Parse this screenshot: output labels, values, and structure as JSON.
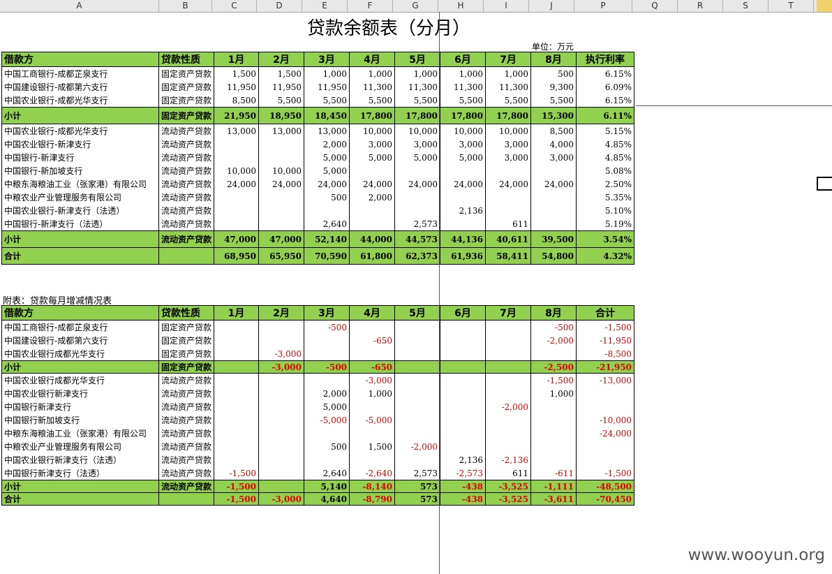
{
  "columns": [
    "A",
    "B",
    "C",
    "D",
    "E",
    "F",
    "G",
    "H",
    "I",
    "J",
    "P",
    "Q",
    "R",
    "S",
    "T"
  ],
  "title": "贷款余额表（分月）",
  "unit": "单位：万元",
  "table1": {
    "headers": [
      "借款方",
      "贷款性质",
      "1月",
      "2月",
      "3月",
      "4月",
      "5月",
      "6月",
      "7月",
      "8月",
      "执行利率"
    ],
    "group1": [
      [
        "中国工商银行-成都芷泉支行",
        "固定资产贷款",
        "1,500",
        "1,500",
        "1,000",
        "1,000",
        "1,000",
        "1,000",
        "1,000",
        "500",
        "6.15%"
      ],
      [
        "中国建设银行-成都第六支行",
        "固定资产贷款",
        "11,950",
        "11,950",
        "11,950",
        "11,300",
        "11,300",
        "11,300",
        "11,300",
        "9,300",
        "6.09%"
      ],
      [
        "中国农业银行-成都光华支行",
        "固定资产贷款",
        "8,500",
        "5,500",
        "5,500",
        "5,500",
        "5,500",
        "5,500",
        "5,500",
        "5,500",
        "6.15%"
      ]
    ],
    "subtotal1": [
      "小计",
      "固定资产贷款",
      "21,950",
      "18,950",
      "18,450",
      "17,800",
      "17,800",
      "17,800",
      "17,800",
      "15,300",
      "6.11%"
    ],
    "group2": [
      [
        "中国农业银行-成都光华支行",
        "流动资产贷款",
        "13,000",
        "13,000",
        "13,000",
        "10,000",
        "10,000",
        "10,000",
        "10,000",
        "8,500",
        "5.15%"
      ],
      [
        "中国农业银行-新津支行",
        "流动资产贷款",
        "",
        "",
        "2,000",
        "3,000",
        "3,000",
        "3,000",
        "3,000",
        "4,000",
        "4.85%"
      ],
      [
        "中国银行-新津支行",
        "流动资产贷款",
        "",
        "",
        "5,000",
        "5,000",
        "5,000",
        "5,000",
        "3,000",
        "3,000",
        "4.85%"
      ],
      [
        "中国银行-新加坡支行",
        "流动资产贷款",
        "10,000",
        "10,000",
        "5,000",
        "",
        "",
        "",
        "",
        "",
        "5.08%"
      ],
      [
        "中粮东海粮油工业（张家港）有限公司",
        "流动资产贷款",
        "24,000",
        "24,000",
        "24,000",
        "24,000",
        "24,000",
        "24,000",
        "24,000",
        "24,000",
        "2.50%"
      ],
      [
        "中粮农业产业管理服务有限公司",
        "流动资产贷款",
        "",
        "",
        "500",
        "2,000",
        "",
        "",
        "",
        "",
        "5.35%"
      ],
      [
        "中国农业银行-新津支行（法透）",
        "流动资产贷款",
        "",
        "",
        "",
        "",
        "",
        "2,136",
        "",
        "",
        "5.10%"
      ],
      [
        "中国银行-新津支行（法透）",
        "流动资产贷款",
        "",
        "",
        "2,640",
        "",
        "2,573",
        "",
        "611",
        "",
        "5.19%"
      ]
    ],
    "subtotal2": [
      "小计",
      "流动资产贷款",
      "47,000",
      "47,000",
      "52,140",
      "44,000",
      "44,573",
      "44,136",
      "40,611",
      "39,500",
      "3.54%"
    ],
    "total": [
      "合计",
      "",
      "68,950",
      "65,950",
      "70,590",
      "61,800",
      "62,373",
      "61,936",
      "58,411",
      "54,800",
      "4.32%"
    ]
  },
  "caption2": "附表：贷款每月增减情况表",
  "table2": {
    "headers": [
      "借款方",
      "贷款性质",
      "1月",
      "2月",
      "3月",
      "4月",
      "5月",
      "6月",
      "7月",
      "8月",
      "合计"
    ],
    "group1": [
      [
        "中国工商银行-成都芷泉支行",
        "固定资产贷款",
        "",
        "",
        "-500",
        "",
        "",
        "",
        "",
        "-500",
        "-1,500"
      ],
      [
        "中国建设银行-成都第六支行",
        "固定资产贷款",
        "",
        "",
        "",
        "-650",
        "",
        "",
        "",
        "-2,000",
        "-11,950"
      ],
      [
        "中国农业银行成都光华支行",
        "固定资产贷款",
        "",
        "-3,000",
        "",
        "",
        "",
        "",
        "",
        "",
        "-8,500"
      ]
    ],
    "subtotal1": [
      "小计",
      "固定资产贷款",
      "",
      "-3,000",
      "-500",
      "-650",
      "",
      "",
      "",
      "-2,500",
      "-21,950"
    ],
    "group2": [
      [
        "中国农业银行成都光华支行",
        "流动资产贷款",
        "",
        "",
        "",
        "-3,000",
        "",
        "",
        "",
        "-1,500",
        "-13,000"
      ],
      [
        "中国农业银行新津支行",
        "流动资产贷款",
        "",
        "",
        "2,000",
        "1,000",
        "",
        "",
        "",
        "1,000",
        ""
      ],
      [
        "中国银行新津支行",
        "流动资产贷款",
        "",
        "",
        "5,000",
        "",
        "",
        "",
        "-2,000",
        "",
        ""
      ],
      [
        "中国银行新加坡支行",
        "流动资产贷款",
        "",
        "",
        "-5,000",
        "-5,000",
        "",
        "",
        "",
        "",
        "-10,000"
      ],
      [
        "中粮东海粮油工业（张家港）有限公司",
        "流动资产贷款",
        "",
        "",
        "",
        "",
        "",
        "",
        "",
        "",
        "-24,000"
      ],
      [
        "中粮农业产业管理服务有限公司",
        "流动资产贷款",
        "",
        "",
        "500",
        "1,500",
        "-2,000",
        "",
        "",
        "",
        ""
      ],
      [
        "中国农业银行新津支行（法透）",
        "流动资产贷款",
        "",
        "",
        "",
        "",
        "",
        "2,136",
        "-2,136",
        "",
        ""
      ],
      [
        "中国银行新津支行（法透）",
        "流动资产贷款",
        "-1,500",
        "",
        "2,640",
        "-2,640",
        "2,573",
        "-2,573",
        "611",
        "-611",
        "-1,500"
      ]
    ],
    "subtotal2": [
      "小计",
      "流动资产贷款",
      "-1,500",
      "",
      "5,140",
      "-8,140",
      "573",
      "-438",
      "-3,525",
      "-1,111",
      "-48,500"
    ],
    "total": [
      "合计",
      "",
      "-1,500",
      "-3,000",
      "4,640",
      "-8,790",
      "573",
      "-438",
      "-3,525",
      "-3,611",
      "-70,450"
    ]
  },
  "watermark": "www.wooyun.org",
  "colors": {
    "header_green": "#92d050",
    "negative_red": "#e00000"
  }
}
